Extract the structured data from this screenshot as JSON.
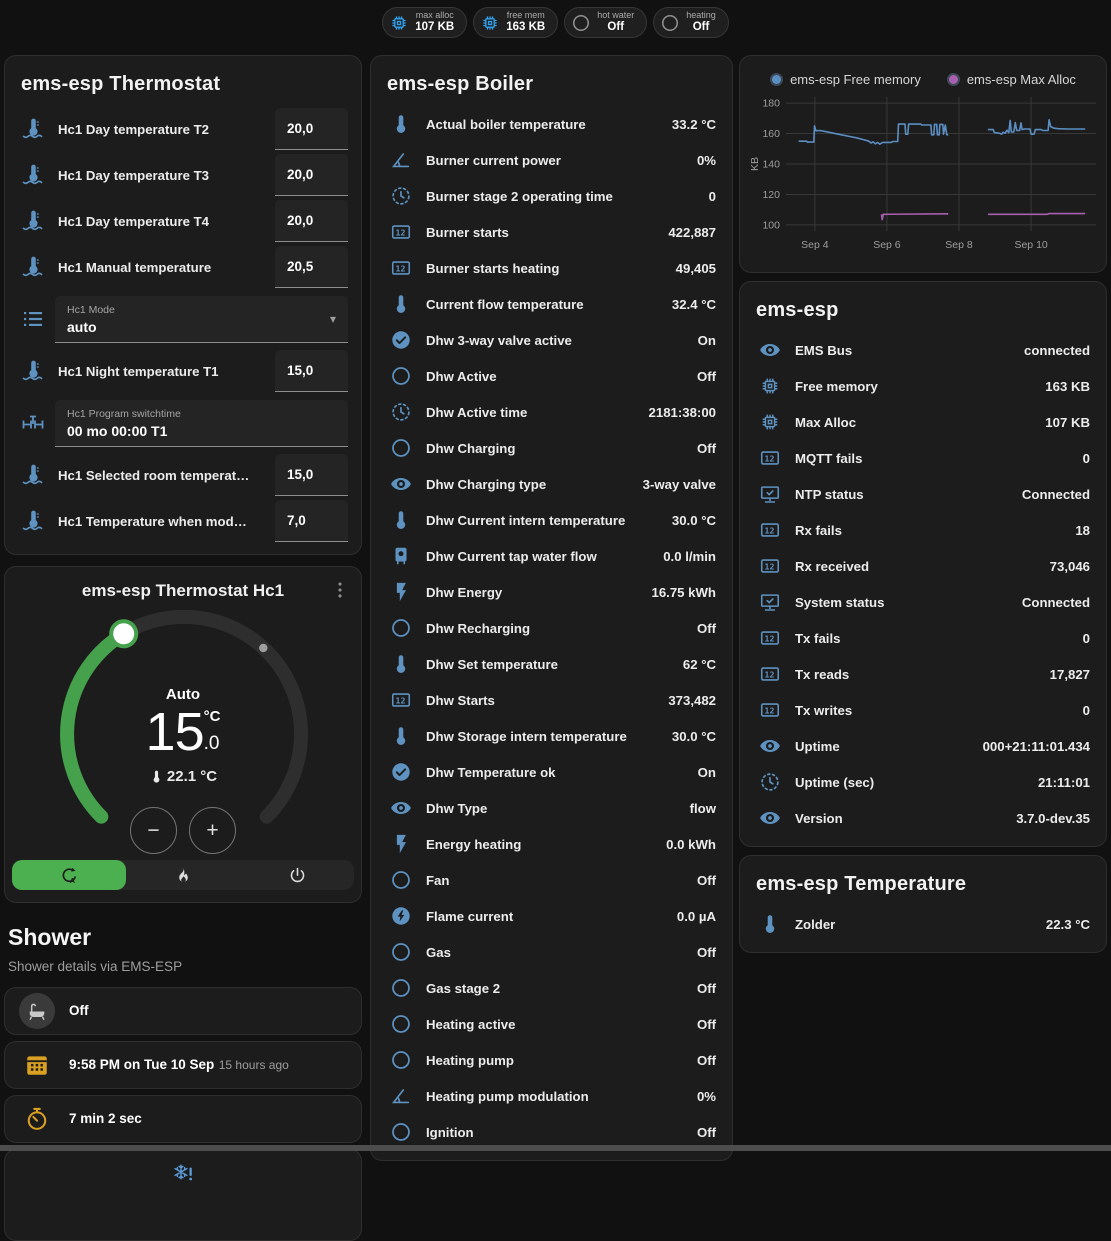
{
  "badges": [
    {
      "icon": "chip",
      "label": "max alloc",
      "value": "107 KB",
      "state": "on"
    },
    {
      "icon": "chip",
      "label": "free mem",
      "value": "163 KB",
      "state": "on"
    },
    {
      "icon": "circle",
      "label": "hot water",
      "value": "Off",
      "state": "off"
    },
    {
      "icon": "circle",
      "label": "heating",
      "value": "Off",
      "state": "off"
    }
  ],
  "thermostat_card": {
    "title": "ems-esp Thermostat",
    "rows": [
      {
        "type": "number",
        "icon": "thermometer-water",
        "label": "Hc1 Day temperature T2",
        "value": "20,0"
      },
      {
        "type": "number",
        "icon": "thermometer-water",
        "label": "Hc1 Day temperature T3",
        "value": "20,0"
      },
      {
        "type": "number",
        "icon": "thermometer-water",
        "label": "Hc1 Day temperature T4",
        "value": "20,0"
      },
      {
        "type": "number",
        "icon": "thermometer-water",
        "label": "Hc1 Manual temperature",
        "value": "20,5"
      },
      {
        "type": "select",
        "icon": "format-list",
        "label": "Hc1 Mode",
        "value": "auto",
        "cls": "tall"
      },
      {
        "type": "number",
        "icon": "thermometer-water",
        "label": "Hc1 Night temperature T1",
        "value": "15,0"
      },
      {
        "type": "text",
        "icon": "pipe-valve",
        "label": "Hc1 Program switchtime",
        "value": "00 mo 00:00 T1",
        "cls": "tall"
      },
      {
        "type": "number",
        "icon": "thermometer-water",
        "label": "Hc1 Selected room temperat…",
        "value": "15,0"
      },
      {
        "type": "number",
        "icon": "thermometer-water",
        "label": "Hc1 Temperature when mod…",
        "value": "7,0"
      }
    ]
  },
  "dial_card": {
    "title": "ems-esp Thermostat Hc1",
    "mode": "Auto",
    "target_int": "15",
    "target_unit": "°C",
    "target_dec": ".0",
    "current": "22.1 °C",
    "minus": "−",
    "plus": "+",
    "modes": [
      {
        "icon": "auto-mode",
        "cls": "active"
      },
      {
        "icon": "fire"
      },
      {
        "icon": "power"
      }
    ]
  },
  "shower": {
    "title": "Shower",
    "subtitle": "Shower details via EMS-ESP",
    "rows": [
      {
        "icon": "bathtub",
        "cls": "gray-badge",
        "primary": "Off"
      },
      {
        "icon": "calendar",
        "cls": "amber",
        "primary": "9:58 PM on Tue 10 Sep",
        "secondary": "15 hours ago"
      },
      {
        "icon": "timer",
        "cls": "amber",
        "primary": "7 min 2 sec"
      }
    ],
    "partial_icon": "snowflake-alert"
  },
  "boiler_card": {
    "title": "ems-esp Boiler",
    "rows": [
      {
        "icon": "thermometer",
        "label": "Actual boiler temperature",
        "value": "33.2 °C"
      },
      {
        "icon": "angle",
        "label": "Burner current power",
        "value": "0%"
      },
      {
        "icon": "clock",
        "label": "Burner stage 2 operating time",
        "value": "0"
      },
      {
        "icon": "counter",
        "label": "Burner starts",
        "value": "422,887"
      },
      {
        "icon": "counter",
        "label": "Burner starts heating",
        "value": "49,405"
      },
      {
        "icon": "thermometer",
        "label": "Current flow temperature",
        "value": "32.4 °C"
      },
      {
        "icon": "check-circle",
        "label": "Dhw 3-way valve active",
        "value": "On"
      },
      {
        "icon": "circle",
        "label": "Dhw Active",
        "value": "Off"
      },
      {
        "icon": "clock",
        "label": "Dhw Active time",
        "value": "2181:38:00"
      },
      {
        "icon": "circle",
        "label": "Dhw Charging",
        "value": "Off"
      },
      {
        "icon": "eye",
        "label": "Dhw Charging type",
        "value": "3-way valve"
      },
      {
        "icon": "thermometer",
        "label": "Dhw Current intern temperature",
        "value": "30.0 °C"
      },
      {
        "icon": "water-heater",
        "label": "Dhw Current tap water flow",
        "value": "0.0 l/min"
      },
      {
        "icon": "flash",
        "label": "Dhw Energy",
        "value": "16.75 kWh"
      },
      {
        "icon": "circle",
        "label": "Dhw Recharging",
        "value": "Off"
      },
      {
        "icon": "thermometer",
        "label": "Dhw Set temperature",
        "value": "62 °C"
      },
      {
        "icon": "counter",
        "label": "Dhw Starts",
        "value": "373,482"
      },
      {
        "icon": "thermometer",
        "label": "Dhw Storage intern temperature",
        "value": "30.0 °C"
      },
      {
        "icon": "check-circle",
        "label": "Dhw Temperature ok",
        "value": "On"
      },
      {
        "icon": "eye",
        "label": "Dhw Type",
        "value": "flow"
      },
      {
        "icon": "flash",
        "label": "Energy heating",
        "value": "0.0 kWh"
      },
      {
        "icon": "circle",
        "label": "Fan",
        "value": "Off"
      },
      {
        "icon": "flash-circle",
        "label": "Flame current",
        "value": "0.0 µA"
      },
      {
        "icon": "circle",
        "label": "Gas",
        "value": "Off"
      },
      {
        "icon": "circle",
        "label": "Gas stage 2",
        "value": "Off"
      },
      {
        "icon": "circle",
        "label": "Heating active",
        "value": "Off"
      },
      {
        "icon": "circle",
        "label": "Heating pump",
        "value": "Off"
      },
      {
        "icon": "angle",
        "label": "Heating pump modulation",
        "value": "0%"
      },
      {
        "icon": "circle",
        "label": "Ignition",
        "value": "Off"
      }
    ]
  },
  "system_card": {
    "title": "ems-esp",
    "rows": [
      {
        "icon": "eye",
        "label": "EMS Bus",
        "value": "connected"
      },
      {
        "icon": "chip",
        "label": "Free memory",
        "value": "163 KB"
      },
      {
        "icon": "chip",
        "label": "Max Alloc",
        "value": "107 KB"
      },
      {
        "icon": "counter",
        "label": "MQTT fails",
        "value": "0"
      },
      {
        "icon": "monitor-check",
        "label": "NTP status",
        "value": "Connected"
      },
      {
        "icon": "counter",
        "label": "Rx fails",
        "value": "18"
      },
      {
        "icon": "counter",
        "label": "Rx received",
        "value": "73,046"
      },
      {
        "icon": "monitor-check",
        "label": "System status",
        "value": "Connected"
      },
      {
        "icon": "counter",
        "label": "Tx fails",
        "value": "0"
      },
      {
        "icon": "counter",
        "label": "Tx reads",
        "value": "17,827"
      },
      {
        "icon": "counter",
        "label": "Tx writes",
        "value": "0"
      },
      {
        "icon": "eye",
        "label": "Uptime",
        "value": "000+21:11:01.434"
      },
      {
        "icon": "clock",
        "label": "Uptime (sec)",
        "value": "21:11:01"
      },
      {
        "icon": "eye",
        "label": "Version",
        "value": "3.7.0-dev.35"
      }
    ]
  },
  "temperature_card": {
    "title": "ems-esp Temperature",
    "rows": [
      {
        "icon": "thermometer",
        "label": "Zolder",
        "value": "22.3 °C"
      }
    ]
  },
  "chart_data": {
    "type": "line",
    "title": "",
    "xlabel": "",
    "ylabel": "KB",
    "grid": true,
    "legend_position": "top",
    "x_range": [
      3.2,
      11.8
    ],
    "y_range": [
      96,
      184
    ],
    "y_ticks": [
      100,
      120,
      140,
      160,
      180
    ],
    "x_ticks": [
      {
        "x": 4,
        "label": "Sep 4"
      },
      {
        "x": 6,
        "label": "Sep 6"
      },
      {
        "x": 8,
        "label": "Sep 8"
      },
      {
        "x": 10,
        "label": "Sep 10"
      }
    ],
    "series": [
      {
        "name": "ems-esp Free memory",
        "color": "#5b8fc3",
        "segments": [
          [
            [
              3.55,
              155
            ],
            [
              3.77,
              155
            ],
            [
              3.79,
              154.4
            ],
            [
              3.97,
              154.4
            ],
            [
              3.99,
              165
            ],
            [
              4.03,
              161.8
            ],
            [
              4.15,
              162
            ],
            [
              4.4,
              160.8
            ],
            [
              4.65,
              159.6
            ],
            [
              4.9,
              158.4
            ],
            [
              5.15,
              157.2
            ],
            [
              5.35,
              156
            ],
            [
              5.5,
              155
            ],
            [
              5.56,
              153.8
            ],
            [
              5.62,
              154.6
            ],
            [
              5.68,
              153.2
            ],
            [
              5.74,
              154.2
            ],
            [
              5.8,
              153
            ],
            [
              5.88,
              154.2
            ],
            [
              6.12,
              154.2
            ],
            [
              6.16,
              154.8
            ],
            [
              6.3,
              154.8
            ],
            [
              6.32,
              166.2
            ],
            [
              6.5,
              166.2
            ],
            [
              6.52,
              159.6
            ],
            [
              6.58,
              159.6
            ],
            [
              6.6,
              166.2
            ],
            [
              6.94,
              166.2
            ],
            [
              6.97,
              165.6
            ],
            [
              7.22,
              165.6
            ],
            [
              7.24,
              159.2
            ],
            [
              7.3,
              159.2
            ],
            [
              7.32,
              166
            ],
            [
              7.38,
              166
            ],
            [
              7.4,
              159.2
            ],
            [
              7.45,
              159.2
            ],
            [
              7.47,
              166
            ],
            [
              7.55,
              166
            ],
            [
              7.57,
              159.6
            ],
            [
              7.62,
              165.6
            ],
            [
              7.66,
              159.2
            ],
            [
              7.7,
              159.2
            ]
          ],
          [
            [
              8.8,
              162.6
            ],
            [
              8.95,
              162.6
            ],
            [
              8.98,
              160.6
            ],
            [
              9.12,
              160.2
            ],
            [
              9.18,
              159.6
            ],
            [
              9.22,
              160.8
            ],
            [
              9.28,
              160.2
            ],
            [
              9.33,
              162.2
            ],
            [
              9.38,
              160.6
            ],
            [
              9.42,
              168.6
            ],
            [
              9.45,
              161
            ],
            [
              9.52,
              161
            ],
            [
              9.56,
              167.2
            ],
            [
              9.6,
              162
            ],
            [
              9.68,
              162
            ],
            [
              9.72,
              167
            ],
            [
              9.75,
              162.6
            ],
            [
              9.82,
              163
            ],
            [
              9.97,
              163
            ],
            [
              10.0,
              159.6
            ],
            [
              10.08,
              159.6
            ],
            [
              10.12,
              162.6
            ],
            [
              10.28,
              162.6
            ],
            [
              10.32,
              162
            ],
            [
              10.47,
              162
            ],
            [
              10.5,
              169
            ],
            [
              10.54,
              164.6
            ],
            [
              10.62,
              163.6
            ],
            [
              10.75,
              163.2
            ],
            [
              11.0,
              163
            ],
            [
              11.5,
              163
            ]
          ]
        ]
      },
      {
        "name": "ems-esp Max Alloc",
        "color": "#a85fb0",
        "segments": [
          [
            [
              5.85,
              107
            ],
            [
              5.87,
              103.5
            ],
            [
              5.9,
              107
            ],
            [
              7.7,
              107.3
            ]
          ],
          [
            [
              8.8,
              107
            ],
            [
              10.45,
              107
            ],
            [
              10.5,
              107.4
            ],
            [
              11.5,
              107.4
            ]
          ]
        ]
      }
    ]
  }
}
